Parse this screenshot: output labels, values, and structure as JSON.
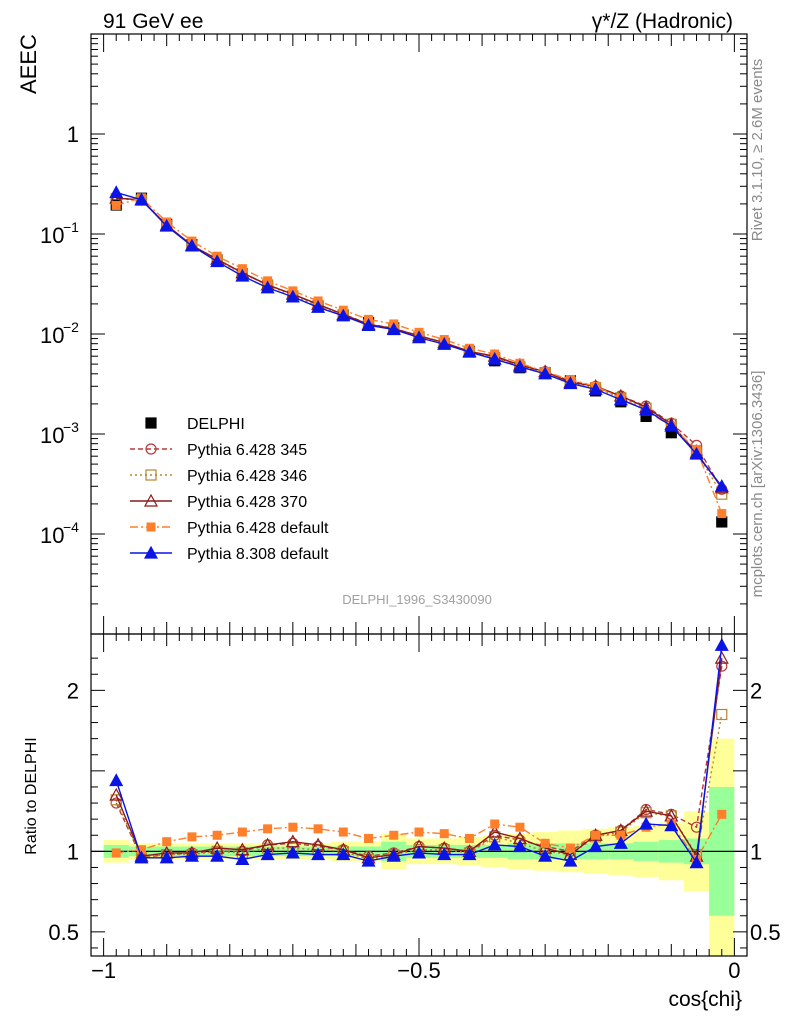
{
  "header": {
    "left": "91 GeV ee",
    "right": "γ*/Z (Hadronic)"
  },
  "side_labels": {
    "rivet": "Rivet 3.1.10, ≥ 2.6M events",
    "mcplots": "mcplots.cern.ch [arXiv:1306.3436]"
  },
  "watermark": "DELPHI_1996_S3430090",
  "colors": {
    "data": "#000000",
    "p345": "#b83a3a",
    "p346": "#b8862b",
    "p370": "#8b1a1a",
    "p6def": "#ff7f2a",
    "p8def": "#0a14e6",
    "band_inner": "#99ff99",
    "band_outer": "#ffff99"
  },
  "chart_data": [
    {
      "type": "line",
      "panel": "main",
      "ylabel": "AEEC",
      "yscale": "log",
      "ylim": [
        1e-05,
        10
      ],
      "xlim": [
        -1.02,
        0.02
      ],
      "y_ticks": [
        {
          "value": 1,
          "label": "1"
        },
        {
          "value": 0.1,
          "base": "10",
          "exp": "−1"
        },
        {
          "value": 0.01,
          "base": "10",
          "exp": "−2"
        },
        {
          "value": 0.001,
          "base": "10",
          "exp": "−3"
        },
        {
          "value": 0.0001,
          "base": "10",
          "exp": "−4"
        }
      ],
      "x": [
        -0.98,
        -0.94,
        -0.9,
        -0.86,
        -0.82,
        -0.78,
        -0.74,
        -0.7,
        -0.66,
        -0.62,
        -0.58,
        -0.54,
        -0.5,
        -0.46,
        -0.42,
        -0.38,
        -0.34,
        -0.3,
        -0.26,
        -0.22,
        -0.18,
        -0.14,
        -0.1,
        -0.06,
        -0.02
      ],
      "legend": [
        {
          "series": 0,
          "label": "DELPHI"
        },
        {
          "series": 1,
          "label": "Pythia 6.428 345"
        },
        {
          "series": 2,
          "label": "Pythia 6.428 346"
        },
        {
          "series": 3,
          "label": "Pythia 6.428 370"
        },
        {
          "series": 4,
          "label": "Pythia 6.428 default"
        },
        {
          "series": 5,
          "label": "Pythia 8.308 default"
        }
      ],
      "series": [
        {
          "name": "DELPHI",
          "values": [
            0.195,
            0.228,
            0.125,
            0.078,
            0.055,
            0.04,
            0.03,
            0.024,
            0.019,
            0.0155,
            0.013,
            0.0115,
            0.0093,
            0.008,
            0.0067,
            0.0054,
            0.0046,
            0.0041,
            0.0034,
            0.0027,
            0.0021,
            0.0015,
            0.00103,
            0.00068,
            0.000132
          ]
        },
        {
          "name": "Pythia 6.428 345",
          "values": [
            0.23,
            0.218,
            0.122,
            0.077,
            0.055,
            0.041,
            0.031,
            0.025,
            0.0196,
            0.0158,
            0.0126,
            0.0114,
            0.0096,
            0.0082,
            0.0067,
            0.0059,
            0.0048,
            0.0042,
            0.0034,
            0.003,
            0.0024,
            0.0019,
            0.00128,
            0.00077,
            0.00028
          ]
        },
        {
          "name": "Pythia 6.428 346",
          "values": [
            0.225,
            0.218,
            0.122,
            0.076,
            0.055,
            0.04,
            0.031,
            0.024,
            0.0193,
            0.0155,
            0.0123,
            0.0112,
            0.0094,
            0.0081,
            0.0066,
            0.0058,
            0.0047,
            0.0041,
            0.0033,
            0.0029,
            0.0023,
            0.0018,
            0.00125,
            0.00066,
            0.00025
          ]
        },
        {
          "name": "Pythia 6.428 370",
          "values": [
            0.228,
            0.22,
            0.123,
            0.077,
            0.056,
            0.041,
            0.031,
            0.025,
            0.0198,
            0.0157,
            0.0125,
            0.0113,
            0.0096,
            0.0082,
            0.0067,
            0.006,
            0.0049,
            0.0042,
            0.0033,
            0.003,
            0.0024,
            0.00185,
            0.00125,
            0.00065,
            0.00029
          ]
        },
        {
          "name": "Pythia 6.428 default",
          "values": [
            0.193,
            0.23,
            0.132,
            0.085,
            0.06,
            0.045,
            0.034,
            0.027,
            0.0214,
            0.0173,
            0.014,
            0.0126,
            0.0104,
            0.0088,
            0.0072,
            0.0063,
            0.0051,
            0.0042,
            0.0035,
            0.003,
            0.0023,
            0.0017,
            0.0012,
            0.0007,
            0.00016
          ]
        },
        {
          "name": "Pythia 8.308 default",
          "values": [
            0.26,
            0.22,
            0.12,
            0.076,
            0.053,
            0.038,
            0.029,
            0.0235,
            0.0185,
            0.0152,
            0.0122,
            0.0111,
            0.0092,
            0.0079,
            0.0066,
            0.0056,
            0.0047,
            0.004,
            0.0032,
            0.0028,
            0.0022,
            0.00175,
            0.0012,
            0.00063,
            0.0003
          ]
        }
      ]
    },
    {
      "type": "line",
      "panel": "ratio",
      "ylabel": "Ratio to DELPHI",
      "xlabel": "cos{chi}",
      "ylim": [
        0.35,
        2.35
      ],
      "xlim": [
        -1.02,
        0.02
      ],
      "y_ticks": [
        {
          "value": 2,
          "label": "2"
        },
        {
          "value": 1,
          "label": "1"
        },
        {
          "value": 0.5,
          "label": "0.5"
        }
      ],
      "x_ticks": [
        {
          "value": -1,
          "label": "−1"
        },
        {
          "value": -0.5,
          "label": "−0.5"
        },
        {
          "value": 0,
          "label": "0"
        }
      ],
      "x": [
        -0.98,
        -0.94,
        -0.9,
        -0.86,
        -0.82,
        -0.78,
        -0.74,
        -0.7,
        -0.66,
        -0.62,
        -0.58,
        -0.54,
        -0.5,
        -0.46,
        -0.42,
        -0.38,
        -0.34,
        -0.3,
        -0.26,
        -0.22,
        -0.18,
        -0.14,
        -0.1,
        -0.06,
        -0.02
      ],
      "band_inner": [
        0.04,
        0.03,
        0.03,
        0.03,
        0.03,
        0.03,
        0.03,
        0.03,
        0.03,
        0.03,
        0.03,
        0.06,
        0.04,
        0.04,
        0.04,
        0.04,
        0.05,
        0.05,
        0.05,
        0.05,
        0.05,
        0.06,
        0.07,
        0.08,
        0.4
      ],
      "band_outer": [
        0.07,
        0.05,
        0.05,
        0.05,
        0.05,
        0.05,
        0.05,
        0.05,
        0.05,
        0.06,
        0.06,
        0.11,
        0.08,
        0.08,
        0.09,
        0.1,
        0.11,
        0.12,
        0.13,
        0.14,
        0.15,
        0.16,
        0.18,
        0.25,
        0.7
      ],
      "series": [
        {
          "name": "Pythia 6.428 345",
          "values": [
            1.3,
            0.96,
            0.98,
            0.99,
            1.0,
            1.0,
            1.04,
            1.05,
            1.03,
            1.01,
            0.97,
            0.99,
            1.03,
            1.02,
            1.0,
            1.1,
            1.07,
            1.03,
            1.0,
            1.1,
            1.13,
            1.26,
            1.23,
            1.15,
            2.15
          ]
        },
        {
          "name": "Pythia 6.428 346",
          "values": [
            1.32,
            0.96,
            0.98,
            0.98,
            1.0,
            0.99,
            1.02,
            1.02,
            1.01,
            1.0,
            0.95,
            0.98,
            1.01,
            1.01,
            0.99,
            1.09,
            1.05,
            1.0,
            0.98,
            1.09,
            1.12,
            1.24,
            1.22,
            0.98,
            1.85
          ]
        },
        {
          "name": "Pythia 6.428 370",
          "values": [
            1.35,
            0.97,
            0.99,
            0.99,
            1.02,
            1.01,
            1.04,
            1.06,
            1.04,
            1.01,
            0.96,
            0.98,
            1.03,
            1.02,
            1.0,
            1.12,
            1.08,
            1.02,
            0.98,
            1.1,
            1.13,
            1.25,
            1.22,
            0.97,
            2.2
          ]
        },
        {
          "name": "Pythia 6.428 default",
          "values": [
            0.99,
            1.01,
            1.06,
            1.09,
            1.1,
            1.12,
            1.14,
            1.15,
            1.14,
            1.12,
            1.08,
            1.1,
            1.12,
            1.11,
            1.08,
            1.17,
            1.15,
            1.05,
            1.02,
            1.1,
            1.1,
            1.15,
            1.17,
            0.95,
            1.23
          ]
        },
        {
          "name": "Pythia 8.308 default",
          "values": [
            1.44,
            0.96,
            0.96,
            0.97,
            0.97,
            0.95,
            0.98,
            0.99,
            0.98,
            0.98,
            0.94,
            0.97,
            0.99,
            0.98,
            0.98,
            1.04,
            1.03,
            0.97,
            0.94,
            1.03,
            1.05,
            1.17,
            1.16,
            0.93,
            2.28
          ]
        }
      ]
    }
  ]
}
